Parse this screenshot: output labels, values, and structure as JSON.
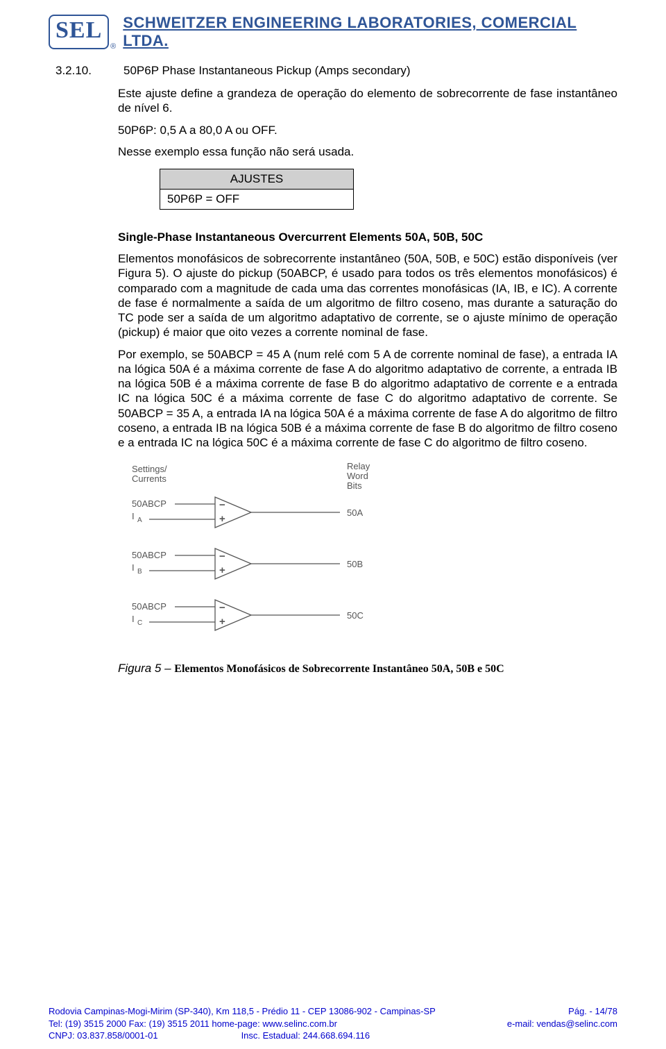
{
  "header": {
    "logo": "SEL",
    "company": "SCHWEITZER ENGINEERING LABORATORIES, COMERCIAL LTDA."
  },
  "section": {
    "num": "3.2.10.",
    "title": "50P6P Phase Instantaneous Pickup (Amps secondary)"
  },
  "body": {
    "p1": "Este ajuste define a grandeza de operação do elemento de sobrecorrente de fase instantâneo de nível 6.",
    "p2": "50P6P: 0,5 A a 80,0 A ou OFF.",
    "p3": "Nesse exemplo essa função não será usada."
  },
  "ajustes": {
    "hdr": "AJUSTES",
    "row": "50P6P = OFF"
  },
  "sub": {
    "heading": "Single-Phase Instantaneous Overcurrent Elements 50A, 50B, 50C",
    "p1": "Elementos monofásicos de sobrecorrente instantâneo (50A, 50B, e 50C) estão disponíveis (ver Figura 5). O ajuste do pickup (50ABCP, é usado para todos os três elementos monofásicos) é comparado com a magnitude de cada uma das correntes monofásicas (IA, IB, e IC). A corrente de fase é normalmente a saída de um algoritmo de filtro coseno, mas durante a saturação do TC pode ser a saída de um algoritmo adaptativo de corrente, se o ajuste mínimo de operação (pickup) é maior que oito vezes a corrente nominal de fase.",
    "p2": "Por exemplo, se 50ABCP = 45 A (num relé com 5 A de corrente nominal de fase), a entrada IA na lógica 50A é a máxima corrente de fase A do algoritmo adaptativo de corrente, a entrada IB na lógica 50B é a máxima corrente de fase B do algoritmo adaptativo de corrente e a entrada IC na lógica 50C é a máxima corrente de fase C do algoritmo adaptativo de corrente. Se 50ABCP = 35 A, a entrada IA na lógica 50A é a máxima corrente de fase A do algoritmo de filtro coseno, a entrada IB na lógica 50B é a máxima corrente de fase B do algoritmo de filtro coseno e a entrada IC na lógica 50C é a máxima corrente de fase C do algoritmo de filtro coseno."
  },
  "diagram": {
    "label_settings": "Settings/",
    "label_currents": "Currents",
    "label_relay": "Relay",
    "label_word": "Word",
    "label_bits": "Bits",
    "rows": [
      {
        "top": "50ABCP",
        "bot": "I",
        "sub": "A",
        "out": "50A"
      },
      {
        "top": "50ABCP",
        "bot": "I",
        "sub": "B",
        "out": "50B"
      },
      {
        "top": "50ABCP",
        "bot": "I",
        "sub": "C",
        "out": "50C"
      }
    ],
    "colors": {
      "stroke": "#555555",
      "text": "#555555",
      "bg": "#ffffff"
    },
    "font_size": 13,
    "line_width": 1.3
  },
  "figure": {
    "label": "Figura 5 –",
    "desc": "Elementos Monofásicos de Sobrecorrente Instantâneo 50A, 50B e 50C"
  },
  "footer": {
    "l1_left": "Rodovia Campinas-Mogi-Mirim (SP-340), Km 118,5 - Prédio 11 - CEP 13086-902 - Campinas-SP",
    "l1_right": "Pág. - 14/78",
    "l2_left": "Tel: (19) 3515 2000   Fax: (19) 3515 2011      home-page: www.selinc.com.br",
    "l2_right": "e-mail: vendas@selinc.com",
    "l3_left": "CNPJ: 03.837.858/0001-01",
    "l3_mid": "Insc. Estadual: 244.668.694.116"
  }
}
